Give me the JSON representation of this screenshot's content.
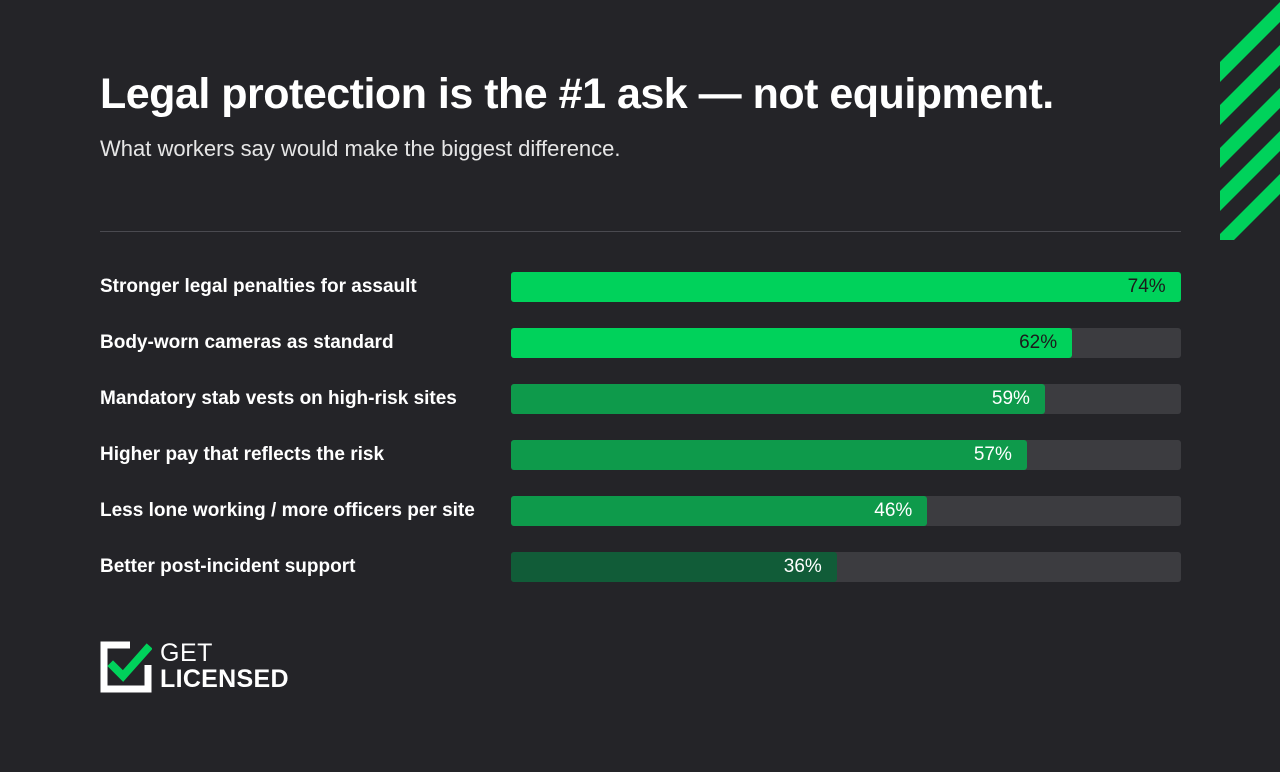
{
  "header": {
    "title": "Legal protection is the #1 ask — not equipment.",
    "subtitle": "What workers say would make the biggest difference."
  },
  "chart_data": {
    "type": "bar",
    "orientation": "horizontal",
    "title": "Legal protection is the #1 ask — not equipment.",
    "subtitle": "What workers say would make the biggest difference.",
    "xlabel": "",
    "ylabel": "",
    "xlim": [
      0,
      100
    ],
    "grid": false,
    "categories": [
      "Stronger legal penalties for assault",
      "Body-worn cameras as standard",
      "Mandatory stab vests on high-risk sites",
      "Higher pay that reflects the risk",
      "Less lone working / more officers per site",
      "Better post-incident support"
    ],
    "values": [
      74,
      62,
      59,
      57,
      46,
      36
    ],
    "value_labels": [
      "74%",
      "62%",
      "59%",
      "57%",
      "46%",
      "36%"
    ],
    "bar_colors": [
      "#00d25b",
      "#00d25b",
      "#0e9a4b",
      "#0e9a4b",
      "#0e9a4b",
      "#115c38"
    ],
    "value_label_colors": [
      "#1b1b1b",
      "#1b1b1b",
      "#ffffff",
      "#ffffff",
      "#ffffff",
      "#ffffff"
    ],
    "track_color": "#3c3c40"
  },
  "colors": {
    "background": "#242428",
    "accent": "#00d25b"
  },
  "logo": {
    "line1": "GET",
    "line2": "LICENSED",
    "icon": "checkmark-box-icon"
  }
}
